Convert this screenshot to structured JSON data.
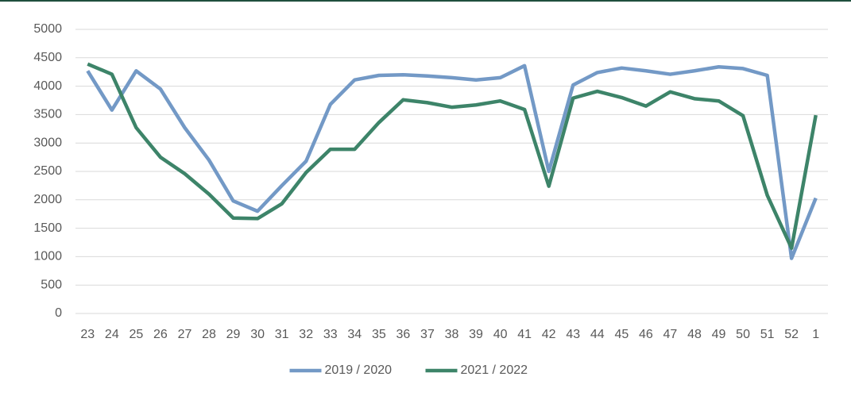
{
  "chart_data": {
    "type": "line",
    "categories": [
      "23",
      "24",
      "25",
      "26",
      "27",
      "28",
      "29",
      "30",
      "31",
      "32",
      "33",
      "34",
      "35",
      "36",
      "37",
      "38",
      "39",
      "40",
      "41",
      "42",
      "43",
      "44",
      "45",
      "46",
      "47",
      "48",
      "49",
      "50",
      "51",
      "52",
      "1"
    ],
    "series": [
      {
        "name": "2019 / 2020",
        "color": "#7399c6",
        "values": [
          4270,
          3580,
          4270,
          3950,
          3270,
          2700,
          1980,
          1800,
          2250,
          2680,
          3680,
          4110,
          4190,
          4200,
          4180,
          4150,
          4110,
          4150,
          4360,
          2500,
          4020,
          4240,
          4320,
          4270,
          4210,
          4270,
          4340,
          4310,
          4190,
          970,
          2030
        ]
      },
      {
        "name": "2021 / 2022",
        "color": "#3d8469",
        "values": [
          4390,
          4210,
          3270,
          2750,
          2460,
          2100,
          1680,
          1670,
          1930,
          2480,
          2890,
          2890,
          3360,
          3760,
          3710,
          3630,
          3670,
          3740,
          3590,
          2240,
          3790,
          3910,
          3800,
          3650,
          3900,
          3780,
          3740,
          3480,
          2080,
          1150,
          3490
        ]
      }
    ],
    "ylim": [
      0,
      5000
    ],
    "yticks": [
      0,
      500,
      1000,
      1500,
      2000,
      2500,
      3000,
      3500,
      4000,
      4500,
      5000
    ],
    "grid": true,
    "legend": "bottom"
  }
}
